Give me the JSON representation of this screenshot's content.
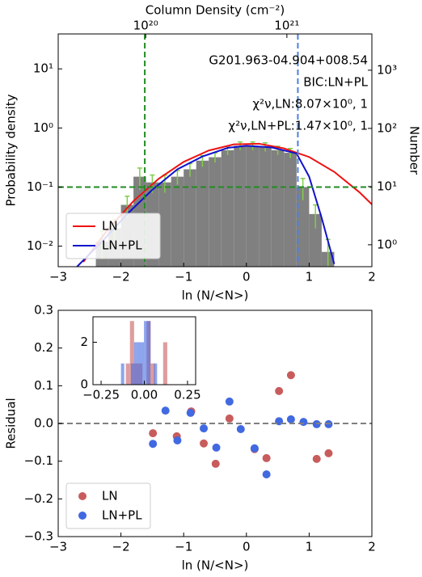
{
  "chart_data": [
    {
      "type": "histogram",
      "x2label": "Column Density (cm⁻²)",
      "xlabel": "ln (N/<N>)",
      "ylabel": "Probability density",
      "y2label": "Number",
      "xlim": [
        -3,
        2
      ],
      "xticks": [
        {
          "value": -3,
          "label": "−3"
        },
        {
          "value": -2,
          "label": "−2"
        },
        {
          "value": -1,
          "label": "−1"
        },
        0,
        1,
        2
      ],
      "x2log": true,
      "x2lim": [
        2.4e+19,
        4e+21
      ],
      "x2ticks": [
        {
          "value": 1e+20,
          "label": "10²⁰"
        },
        {
          "value": 1e+21,
          "label": "10²¹"
        }
      ],
      "ylog": true,
      "ylim": [
        0.0045,
        39
      ],
      "yticks": [
        {
          "value": 0.01,
          "label": "10⁻²"
        },
        {
          "value": 0.1,
          "label": "10⁻¹"
        },
        {
          "value": 1,
          "label": "10⁰"
        },
        {
          "value": 10,
          "label": "10¹"
        }
      ],
      "y2log": true,
      "y2lim": [
        0.42,
        4200
      ],
      "y2ticks": [
        {
          "value": 1,
          "label": "10⁰"
        },
        {
          "value": 10,
          "label": "10¹"
        },
        {
          "value": 100,
          "label": "10²"
        },
        {
          "value": 1000,
          "label": "10³"
        }
      ],
      "bins": [
        -2.4,
        -2.2,
        -2.0,
        -1.8,
        -1.6,
        -1.4,
        -1.2,
        -1.0,
        -0.8,
        -0.6,
        -0.4,
        -0.2,
        0.0,
        0.2,
        0.4,
        0.6,
        0.8,
        1.0,
        1.2,
        1.4
      ],
      "values": [
        0.012,
        0.02,
        0.05,
        0.15,
        0.12,
        0.12,
        0.15,
        0.2,
        0.28,
        0.32,
        0.42,
        0.5,
        0.5,
        0.48,
        0.42,
        0.38,
        0.1,
        0.035,
        0.008
      ],
      "errors": [
        0.006,
        0.008,
        0.02,
        0.06,
        0.04,
        0.04,
        0.04,
        0.05,
        0.06,
        0.06,
        0.07,
        0.08,
        0.08,
        0.08,
        0.07,
        0.07,
        0.04,
        0.015,
        0.005
      ],
      "color": "#808080",
      "error_color": "#7fce4a",
      "series": [
        {
          "name": "LN",
          "color": "#ee1111",
          "x": [
            -2.6,
            -2.2,
            -1.8,
            -1.4,
            -1.0,
            -0.6,
            -0.2,
            0.2,
            0.6,
            1.0,
            1.4,
            1.8,
            2.0
          ],
          "y": [
            0.0054,
            0.0197,
            0.058,
            0.138,
            0.267,
            0.416,
            0.528,
            0.542,
            0.451,
            0.323,
            0.181,
            0.082,
            0.051
          ]
        },
        {
          "name": "LN+PL",
          "color": "#1111cc",
          "x": [
            -2.7,
            -2.3,
            -1.9,
            -1.5,
            -1.1,
            -0.7,
            -0.3,
            0.0,
            0.4,
            0.8,
            1.0,
            1.2,
            1.4
          ],
          "y": [
            0.0045,
            0.012,
            0.035,
            0.09,
            0.2,
            0.33,
            0.46,
            0.5,
            0.47,
            0.37,
            0.15,
            0.03,
            0.005
          ]
        }
      ],
      "vlines": [
        {
          "x": -1.62,
          "color": "#228b22"
        },
        {
          "x": 0.82,
          "color": "#4f7fe0"
        }
      ],
      "hlines": [
        {
          "y": 0.1,
          "color": "#228b22"
        }
      ],
      "annotations": [
        "G201.963-04.904+008.54",
        "BIC:LN+PL",
        "χ²ν,LN:8.07×10⁰, 1",
        "χ²ν,LN+PL:1.47×10⁰, 1"
      ],
      "legend": "lower left"
    },
    {
      "type": "scatter",
      "xlabel": "ln (N/<N>)",
      "ylabel": "Residual",
      "xlim": [
        -3,
        2
      ],
      "xticks": [
        {
          "value": -3,
          "label": "−3"
        },
        {
          "value": -2,
          "label": "−2"
        },
        {
          "value": -1,
          "label": "−1"
        },
        0,
        1,
        2
      ],
      "ylim": [
        -0.3,
        0.3
      ],
      "yticks": [
        {
          "value": -0.3,
          "label": "−0.3"
        },
        {
          "value": -0.2,
          "label": "−0.2"
        },
        {
          "value": -0.1,
          "label": "−0.1"
        },
        {
          "value": 0,
          "label": "0.0"
        },
        0.1,
        0.2,
        0.3
      ],
      "series": [
        {
          "name": "LN",
          "color": "#c85c5c",
          "x": [
            -1.49,
            -1.11,
            -0.88,
            -0.68,
            -0.49,
            -0.27,
            0.13,
            0.32,
            0.52,
            0.71,
            1.12,
            1.31
          ],
          "y": [
            -0.026,
            -0.034,
            0.032,
            -0.053,
            -0.107,
            0.013,
            -0.068,
            -0.092,
            0.086,
            0.128,
            -0.094,
            -0.079
          ]
        },
        {
          "name": "LN+PL",
          "color": "#4169e1",
          "x": [
            -1.49,
            -1.29,
            -1.1,
            -0.89,
            -0.68,
            -0.48,
            -0.27,
            -0.09,
            0.13,
            0.32,
            0.52,
            0.71,
            0.91,
            1.12,
            1.31
          ],
          "y": [
            -0.054,
            0.034,
            -0.045,
            0.028,
            -0.013,
            -0.064,
            0.058,
            -0.015,
            -0.066,
            -0.135,
            0.006,
            0.011,
            0.004,
            -0.002,
            -0.002
          ]
        }
      ],
      "hlines": [
        {
          "y": 0,
          "color": "#808080"
        }
      ],
      "legend": "lower left"
    },
    {
      "type": "histogram",
      "xlim": [
        -0.297,
        0.297
      ],
      "xticks": [
        {
          "value": -0.25,
          "label": "−0.25"
        },
        {
          "value": 0,
          "label": "0.00"
        },
        0.25
      ],
      "ylim": [
        0,
        3.2
      ],
      "yticks": [
        0,
        2
      ],
      "series": [
        {
          "color": "#c85c5c",
          "bins": [
            -0.107,
            -0.083,
            -0.059,
            -0.035,
            -0.011,
            0.013,
            0.037,
            0.061,
            0.085,
            0.109,
            0.133
          ],
          "values": [
            1,
            3,
            1,
            1,
            0,
            3,
            1,
            0,
            0,
            2
          ]
        },
        {
          "color": "#4169e1",
          "bins": [
            -0.135,
            -0.116,
            -0.097,
            -0.078,
            -0.059,
            -0.04,
            -0.021,
            -0.002,
            0.017,
            0.036,
            0.055,
            0.074
          ],
          "values": [
            1,
            0,
            0,
            1,
            2,
            2,
            2,
            3,
            3,
            0,
            1
          ]
        }
      ]
    }
  ]
}
